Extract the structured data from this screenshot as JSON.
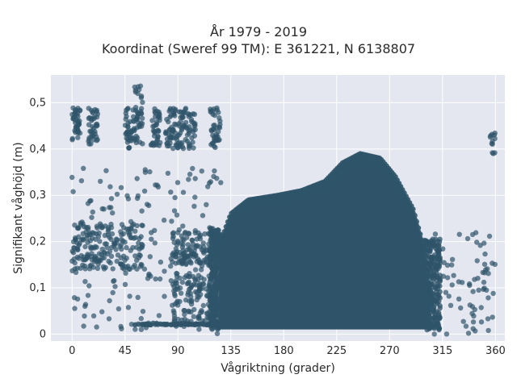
{
  "chart_data": {
    "type": "scatter",
    "title_line1": "År 1979 - 2019",
    "title_line2": "Koordinat (Sweref 99 TM): E 361221, N 6138807",
    "xlabel": "Vågriktning (grader)",
    "ylabel": "Signifikant våghöjd (m)",
    "xlim": [
      -18,
      368
    ],
    "ylim": [
      -0.015,
      0.56
    ],
    "x_ticks": [
      0,
      45,
      90,
      135,
      180,
      225,
      270,
      315,
      360
    ],
    "x_tick_labels": [
      "0",
      "45",
      "90",
      "135",
      "180",
      "225",
      "270",
      "315",
      "360"
    ],
    "y_ticks": [
      0,
      0.1,
      0.2,
      0.3,
      0.4,
      0.5
    ],
    "y_tick_labels": [
      "0",
      "0,1",
      "0,2",
      "0,3",
      "0,4",
      "0,5"
    ],
    "grid": true,
    "marker_color": "#2f5469",
    "plot_background": "#e5e7f0",
    "clusters": [
      {
        "x_range": [
          0,
          7
        ],
        "y_range": [
          0.42,
          0.49
        ],
        "count": 40
      },
      {
        "x_range": [
          14,
          22
        ],
        "y_range": [
          0.41,
          0.49
        ],
        "count": 40
      },
      {
        "x_range": [
          45,
          53
        ],
        "y_range": [
          0.4,
          0.49
        ],
        "count": 40
      },
      {
        "x_range": [
          53,
          60
        ],
        "y_range": [
          0.41,
          0.54
        ],
        "count": 40
      },
      {
        "x_range": [
          67,
          75
        ],
        "y_range": [
          0.4,
          0.49
        ],
        "count": 40
      },
      {
        "x_range": [
          79,
          88
        ],
        "y_range": [
          0.4,
          0.49
        ],
        "count": 40
      },
      {
        "x_range": [
          88,
          97
        ],
        "y_range": [
          0.4,
          0.49
        ],
        "count": 40
      },
      {
        "x_range": [
          97,
          105
        ],
        "y_range": [
          0.4,
          0.48
        ],
        "count": 30
      },
      {
        "x_range": [
          117,
          126
        ],
        "y_range": [
          0.4,
          0.49
        ],
        "count": 40
      },
      {
        "x_range": [
          355,
          360
        ],
        "y_range": [
          0.38,
          0.45
        ],
        "count": 12
      },
      {
        "x_range": [
          0,
          60
        ],
        "y_range": [
          0.14,
          0.24
        ],
        "count": 170
      },
      {
        "x_range": [
          0,
          130
        ],
        "y_range": [
          0.0,
          0.36
        ],
        "count": 200
      },
      {
        "x_range": [
          85,
          130
        ],
        "y_range": [
          0.15,
          0.22
        ],
        "count": 140
      },
      {
        "x_range": [
          85,
          130
        ],
        "y_range": [
          0.02,
          0.14
        ],
        "count": 150
      },
      {
        "x_range": [
          300,
          360
        ],
        "y_range": [
          0.0,
          0.22
        ],
        "count": 90
      },
      {
        "x_range": [
          50,
          300
        ],
        "y_range": [
          0.02,
          0.022
        ],
        "count": 200
      }
    ],
    "envelope": {
      "x_range": [
        125,
        305
      ],
      "y_range_bottom": 0.01,
      "top_points": [
        [
          125,
          0.19
        ],
        [
          135,
          0.26
        ],
        [
          150,
          0.29
        ],
        [
          175,
          0.3
        ],
        [
          195,
          0.31
        ],
        [
          215,
          0.33
        ],
        [
          230,
          0.37
        ],
        [
          245,
          0.39
        ],
        [
          262,
          0.38
        ],
        [
          275,
          0.34
        ],
        [
          290,
          0.27
        ],
        [
          300,
          0.18
        ],
        [
          305,
          0.08
        ]
      ],
      "density": "dense"
    }
  }
}
